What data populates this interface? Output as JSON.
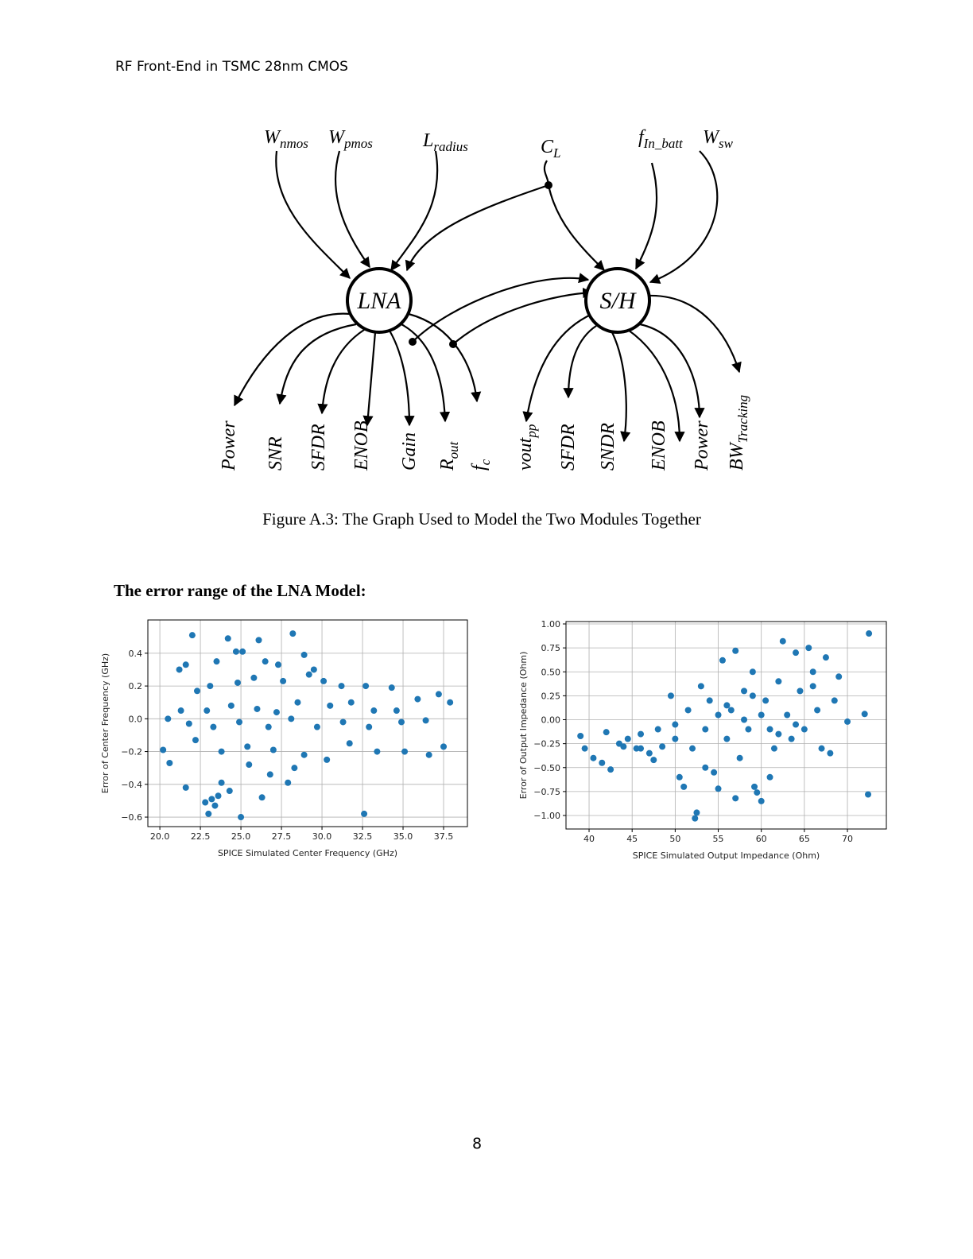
{
  "header": {
    "title": "RF Front-End in TSMC 28nm CMOS"
  },
  "figure": {
    "nodes": [
      "LNA",
      "S/H"
    ],
    "inputs": [
      {
        "base": "W",
        "sub": "nmos"
      },
      {
        "base": "W",
        "sub": "pmos"
      },
      {
        "base": "L",
        "sub": "radius"
      },
      {
        "base": "C",
        "sub": "L"
      },
      {
        "base": "f",
        "sub": "In_batt"
      },
      {
        "base": "W",
        "sub": "sw"
      }
    ],
    "outputs": [
      {
        "base": "Power"
      },
      {
        "base": "SNR"
      },
      {
        "base": "SFDR"
      },
      {
        "base": "ENOB"
      },
      {
        "base": "Gain"
      },
      {
        "base": "R",
        "sub": "out"
      },
      {
        "base": "f",
        "sub": "c"
      },
      {
        "base": "vout",
        "sub": "pp"
      },
      {
        "base": "SFDR"
      },
      {
        "base": "SNDR"
      },
      {
        "base": "ENOB"
      },
      {
        "base": "Power"
      },
      {
        "base": "BW",
        "sub": "Tracking"
      }
    ],
    "caption": "Figure A.3: The Graph Used to Model the Two Modules Together"
  },
  "section": {
    "heading": "The error range of the LNA Model:"
  },
  "chart_data": [
    {
      "type": "scatter",
      "x_label": "SPICE Simulated Center Frequency (GHz)",
      "y_label": "Error of Center Frequency (GHz)",
      "color": "#1f77b4",
      "grid": true,
      "xlim": [
        19.26,
        38.97
      ],
      "ylim": [
        -0.658,
        0.603
      ],
      "xticks": [
        {
          "value": 20,
          "label": "20.0"
        },
        22.5,
        {
          "value": 25,
          "label": "25.0"
        },
        27.5,
        {
          "value": 30,
          "label": "30.0"
        },
        32.5,
        {
          "value": 35,
          "label": "35.0"
        },
        37.5
      ],
      "yticks": [
        {
          "value": -0.6,
          "label": "−0.6"
        },
        {
          "value": -0.4,
          "label": "−0.4"
        },
        {
          "value": -0.2,
          "label": "−0.2"
        },
        {
          "value": 0,
          "label": "0.0"
        },
        0.2,
        0.4
      ],
      "x": [
        22,
        24.2,
        26.1,
        28.2,
        21.6,
        21.2,
        23.5,
        24.7,
        25.1,
        26.5,
        27.3,
        28.9,
        29.5,
        23.1,
        22.3,
        24.8,
        25.8,
        27.6,
        29.2,
        30.1,
        31.2,
        32.7,
        34.3,
        35.9,
        37.2,
        37.9,
        21.3,
        22.9,
        24.4,
        26,
        27.2,
        28.5,
        30.5,
        31.8,
        33.2,
        34.6,
        20.5,
        21.8,
        23.3,
        24.9,
        26.7,
        28.1,
        29.7,
        31.3,
        32.9,
        34.9,
        36.4,
        20.2,
        20.6,
        22.2,
        23.8,
        25.4,
        27,
        28.9,
        30.3,
        31.7,
        33.4,
        35.1,
        36.6,
        37.5,
        21.6,
        23.8,
        24.3,
        22.8,
        23.2,
        23.6,
        23,
        23.4,
        25,
        26.3,
        27.9,
        32.6,
        26.8,
        28.3,
        25.5
      ],
      "values": [
        0.51,
        0.49,
        0.48,
        0.52,
        0.33,
        0.3,
        0.35,
        0.41,
        0.41,
        0.35,
        0.33,
        0.39,
        0.3,
        0.2,
        0.17,
        0.22,
        0.25,
        0.23,
        0.27,
        0.23,
        0.2,
        0.2,
        0.19,
        0.12,
        0.15,
        0.1,
        0.05,
        0.05,
        0.08,
        0.06,
        0.04,
        0.1,
        0.08,
        0.1,
        0.05,
        0.05,
        0,
        -0.03,
        -0.05,
        -0.02,
        -0.05,
        0,
        -0.05,
        -0.02,
        -0.05,
        -0.02,
        -0.01,
        -0.19,
        -0.27,
        -0.13,
        -0.2,
        -0.17,
        -0.19,
        -0.22,
        -0.25,
        -0.15,
        -0.2,
        -0.2,
        -0.22,
        -0.17,
        -0.42,
        -0.39,
        -0.44,
        -0.51,
        -0.49,
        -0.47,
        -0.58,
        -0.53,
        -0.6,
        -0.48,
        -0.39,
        -0.58,
        -0.34,
        -0.3,
        -0.28
      ]
    },
    {
      "type": "scatter",
      "x_label": "SPICE Simulated Output Impedance (Ohm)",
      "y_label": "Error of Output Impedance (Ohm)",
      "color": "#1f77b4",
      "grid": true,
      "xlim": [
        37.32,
        74.52
      ],
      "ylim": [
        -1.141,
        1.025
      ],
      "xticks": [
        40,
        45,
        50,
        55,
        60,
        65,
        70
      ],
      "yticks": [
        {
          "value": -1,
          "label": "−1.00"
        },
        {
          "value": -0.75,
          "label": "−0.75"
        },
        {
          "value": -0.5,
          "label": "−0.50"
        },
        {
          "value": -0.25,
          "label": "−0.25"
        },
        {
          "value": 0,
          "label": "0.00"
        },
        {
          "value": 0.25,
          "label": "0.25"
        },
        {
          "value": 0.5,
          "label": "0.50"
        },
        {
          "value": 0.75,
          "label": "0.75"
        },
        {
          "value": 1,
          "label": "1.00"
        }
      ],
      "x": [
        72.5,
        39,
        39.5,
        40.5,
        41.5,
        42.5,
        42,
        43.5,
        44.5,
        45.5,
        46,
        47,
        48,
        48.5,
        49.5,
        50,
        50.5,
        51,
        51.5,
        52,
        52.3,
        52.5,
        53,
        53.5,
        54,
        54.5,
        55,
        55.5,
        56,
        56.5,
        57,
        57.5,
        58,
        58.5,
        59,
        59.2,
        59.5,
        60,
        60.5,
        61,
        61.5,
        62,
        62.5,
        63,
        63.5,
        64,
        64.5,
        65,
        65.5,
        66,
        66.5,
        67,
        67.5,
        68,
        68.5,
        69,
        70,
        72,
        72.4,
        57,
        55,
        53.5,
        58,
        60,
        61,
        56,
        62,
        64,
        66,
        50,
        47.5,
        46,
        44,
        59
      ],
      "values": [
        0.9,
        -0.17,
        -0.3,
        -0.4,
        -0.45,
        -0.52,
        -0.13,
        -0.25,
        -0.2,
        -0.3,
        -0.15,
        -0.35,
        -0.1,
        -0.28,
        0.25,
        -0.05,
        -0.6,
        -0.7,
        0.1,
        -0.3,
        -1.03,
        -0.97,
        0.35,
        -0.1,
        0.2,
        -0.55,
        0.05,
        0.62,
        -0.2,
        0.1,
        0.72,
        -0.4,
        0.3,
        -0.1,
        0.5,
        -0.7,
        -0.76,
        -0.85,
        0.2,
        -0.6,
        -0.3,
        0.4,
        0.82,
        0.05,
        -0.2,
        0.7,
        0.3,
        -0.1,
        0.75,
        0.5,
        0.1,
        -0.3,
        0.65,
        -0.35,
        0.2,
        0.45,
        -0.02,
        0.06,
        -0.78,
        -0.82,
        -0.72,
        -0.5,
        0,
        0.05,
        -0.1,
        0.15,
        -0.15,
        -0.05,
        0.35,
        -0.2,
        -0.42,
        -0.3,
        -0.28,
        0.25
      ]
    }
  ],
  "footer": {
    "page_number": "8"
  }
}
